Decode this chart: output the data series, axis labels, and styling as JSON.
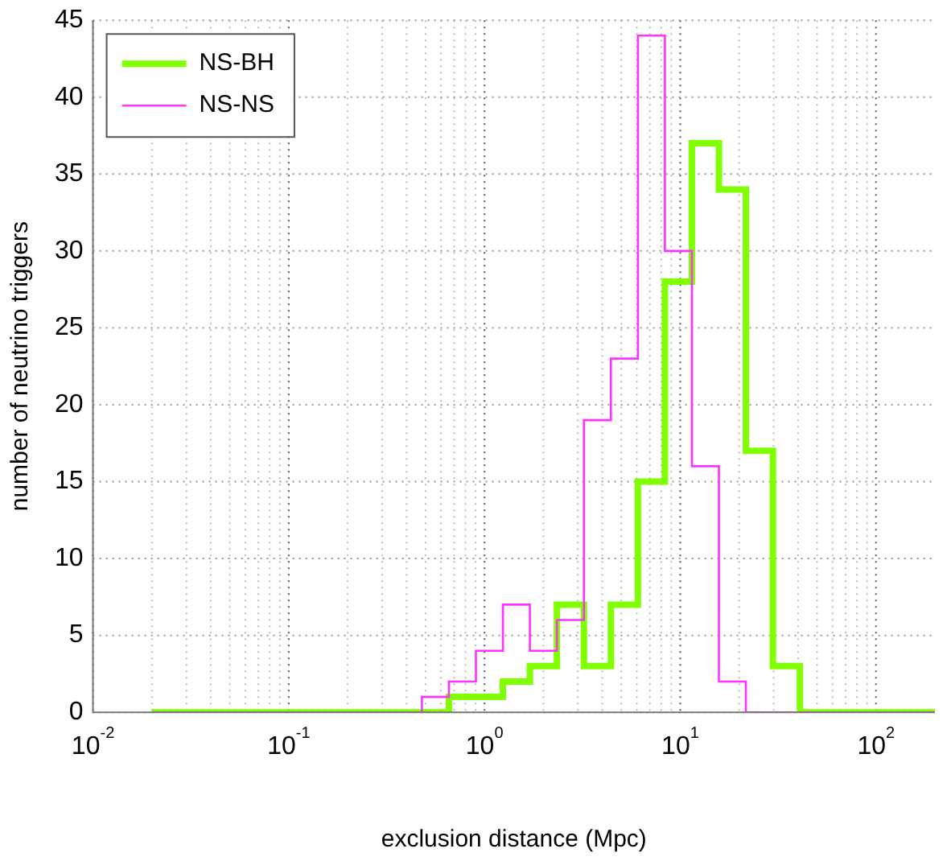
{
  "chart_data": {
    "type": "histogram",
    "xlabel": "exclusion distance (Mpc)",
    "ylabel": "number of neutrino triggers",
    "bins": [
      0.02,
      0.02748,
      0.03775,
      0.05186,
      0.07125,
      0.09788,
      0.1345,
      0.1847,
      0.2538,
      0.3487,
      0.479,
      0.6581,
      0.9042,
      1.242,
      1.706,
      2.344,
      3.22,
      4.424,
      6.078,
      8.351,
      11.47,
      15.76,
      21.65,
      29.75,
      40.87,
      56.15,
      77.14,
      106,
      145.6,
      200
    ],
    "series": [
      {
        "name": "NS-BH",
        "color": "#80ff00",
        "values": [
          0,
          0,
          0,
          0,
          0,
          0,
          0,
          0,
          0,
          0,
          0,
          1,
          1,
          2,
          3,
          7,
          3,
          7,
          15,
          28,
          37,
          34,
          17,
          3,
          0,
          0,
          0,
          0,
          0
        ]
      },
      {
        "name": "NS-NS",
        "color": "#ff33ff",
        "values": [
          0,
          0,
          0,
          0,
          0,
          0,
          0,
          0,
          0,
          0,
          1,
          2,
          4,
          7,
          4,
          6,
          19,
          23,
          44,
          30,
          16,
          2,
          0,
          0,
          0,
          0,
          0,
          0,
          0
        ]
      }
    ],
    "log": "x",
    "xlim": [
      0.01,
      200
    ],
    "xticks": [
      {
        "value": 0.01,
        "label": "10$^{-2}$"
      },
      {
        "value": 0.1,
        "label": "10$^{-1}$"
      },
      {
        "value": 1,
        "label": "10$^{0}$"
      },
      {
        "value": 10,
        "label": "10$^{1}$"
      },
      {
        "value": 100,
        "label": "10$^{2}$"
      }
    ],
    "ylim": [
      0,
      45
    ],
    "yticks": [
      0,
      5,
      10,
      15,
      20,
      25,
      30,
      35,
      40,
      45
    ],
    "grid": true,
    "legend": "top left"
  }
}
